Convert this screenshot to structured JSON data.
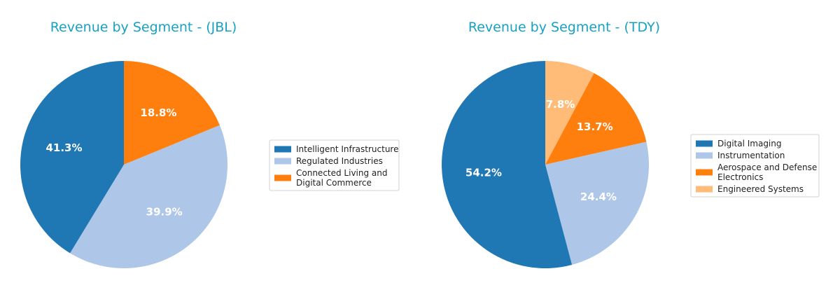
{
  "chart_data": [
    {
      "type": "pie",
      "title": "Revenue by Segment - (JBL)",
      "start_angle_deg": 90,
      "direction": "clockwise",
      "slices": [
        {
          "label": "Connected Living and Digital Commerce",
          "value": 18.8,
          "display": "18.8%",
          "color": "#ff7f0e"
        },
        {
          "label": "Regulated Industries",
          "value": 39.9,
          "display": "39.9%",
          "color": "#aec7e8"
        },
        {
          "label": "Intelligent Infrastructure",
          "value": 41.3,
          "display": "41.3%",
          "color": "#1f77b4"
        }
      ],
      "legend": {
        "placement": "right",
        "entries": [
          {
            "label": "Intelligent Infrastructure",
            "color": "#1f77b4"
          },
          {
            "label": "Regulated Industries",
            "color": "#aec7e8"
          },
          {
            "label": "Connected Living and Digital Commerce",
            "lines": [
              "Connected Living and",
              "Digital Commerce"
            ],
            "color": "#ff7f0e"
          }
        ]
      }
    },
    {
      "type": "pie",
      "title": "Revenue by Segment - (TDY)",
      "start_angle_deg": 90,
      "direction": "clockwise",
      "slices": [
        {
          "label": "Engineered Systems",
          "value": 7.8,
          "display": "7.8%",
          "color": "#ffbb78"
        },
        {
          "label": "Aerospace and Defense Electronics",
          "value": 13.7,
          "display": "13.7%",
          "color": "#ff7f0e"
        },
        {
          "label": "Instrumentation",
          "value": 24.4,
          "display": "24.4%",
          "color": "#aec7e8"
        },
        {
          "label": "Digital Imaging",
          "value": 54.2,
          "display": "54.2%",
          "color": "#1f77b4"
        }
      ],
      "legend": {
        "placement": "right",
        "entries": [
          {
            "label": "Digital Imaging",
            "color": "#1f77b4"
          },
          {
            "label": "Instrumentation",
            "color": "#aec7e8"
          },
          {
            "label": "Aerospace and Defense Electronics",
            "lines": [
              "Aerospace and Defense",
              "Electronics"
            ],
            "color": "#ff7f0e"
          },
          {
            "label": "Engineered Systems",
            "color": "#ffbb78"
          }
        ]
      }
    }
  ]
}
